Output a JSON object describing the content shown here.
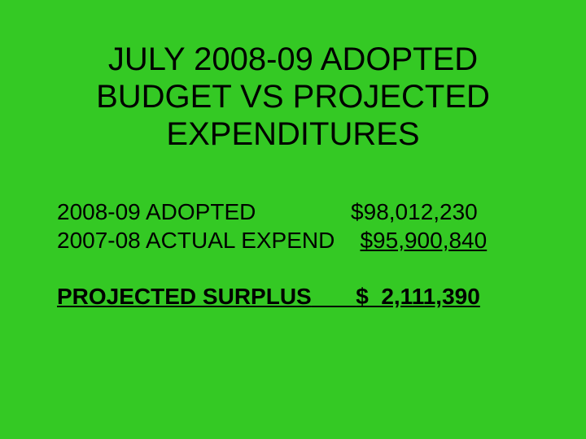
{
  "slide": {
    "background_color": "#34c924",
    "text_color": "#000000",
    "title": "JULY 2008-09 ADOPTED BUDGET VS PROJECTED EXPENDITURES",
    "title_fontsize": 40,
    "content_fontsize": 28,
    "rows": [
      {
        "label": "2008-09 ADOPTED",
        "value": "$98,012,230",
        "underlined": false,
        "bold": false
      },
      {
        "label": "2007-08 ACTUAL EXPEND",
        "value": "$95,900,840",
        "underlined": true,
        "bold": false
      }
    ],
    "surplus": {
      "label": "PROJECTED SURPLUS",
      "value": "$  2,111,390",
      "underlined": true,
      "bold": true
    }
  }
}
